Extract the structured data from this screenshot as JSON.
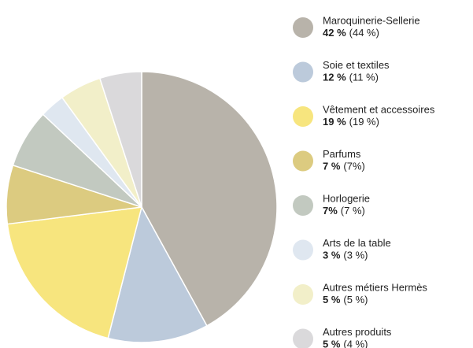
{
  "chart_data": {
    "type": "pie",
    "categories": [
      "Maroquinerie-Sellerie",
      "Soie et textiles",
      "Vêtement et accessoires",
      "Parfums",
      "Horlogerie",
      "Arts de la table",
      "Autres métiers Hermès",
      "Autres produits"
    ],
    "values": [
      42,
      12,
      19,
      7,
      7,
      3,
      5,
      5
    ],
    "value_labels": [
      "42 %",
      "12 %",
      "19 %",
      "7 %",
      "7%",
      "3 %",
      "5 %",
      "5 %"
    ],
    "previous_values": [
      44,
      11,
      19,
      7,
      7,
      3,
      5,
      4
    ],
    "previous_value_labels": [
      "(44 %)",
      "(11 %)",
      "(19 %)",
      "(7%)",
      "(7 %)",
      "(3 %)",
      "(5 %)",
      "(4 %)"
    ],
    "colors": [
      "#b8b3aa",
      "#bccadb",
      "#f7e57e",
      "#dccb80",
      "#c2c9c0",
      "#dfe7f0",
      "#f2efc9",
      "#dad9db"
    ]
  }
}
